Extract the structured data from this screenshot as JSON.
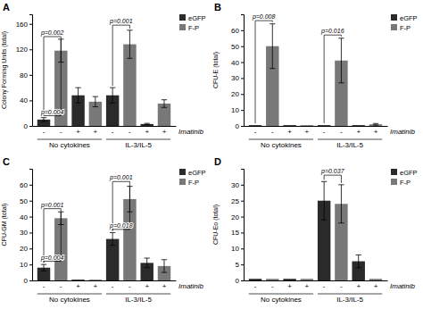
{
  "chart_data": [
    {
      "type": "bar",
      "title": "A",
      "ylabel": "Colony Forming Units (total)",
      "xlabel": "Imatinib",
      "ylim": [
        0,
        175
      ],
      "yticks": [
        0,
        40,
        80,
        120,
        160
      ],
      "categories": [
        "-",
        "-",
        "+",
        "+",
        "-",
        "-",
        "+",
        "+"
      ],
      "groups": [
        "No cytokines",
        "IL-3/IL-5"
      ],
      "legend": "upper right",
      "series": [
        {
          "name": "eGFP",
          "color": "#2a2a2a",
          "values": [
            10,
            null,
            48,
            null,
            48,
            null,
            3,
            null
          ],
          "errors": [
            3,
            null,
            12,
            null,
            12,
            null,
            1,
            null
          ]
        },
        {
          "name": "F-P",
          "color": "#787878",
          "values": [
            null,
            118,
            null,
            38,
            null,
            128,
            null,
            35
          ],
          "errors": [
            null,
            18,
            null,
            8,
            null,
            22,
            null,
            6
          ]
        }
      ],
      "pvalues": [
        {
          "x1": 0,
          "x2": 1,
          "y": 140,
          "text": "p=0.002"
        },
        {
          "x1": 4,
          "x2": 5,
          "y": 158,
          "text": "p=0.001"
        },
        {
          "x1": 0,
          "x2": 1,
          "y": 16,
          "text": "p=0.004"
        }
      ]
    },
    {
      "type": "bar",
      "title": "B",
      "ylabel": "CFU-E (total)",
      "xlabel": "Imatinib",
      "ylim": [
        0,
        70
      ],
      "yticks": [
        0,
        10,
        20,
        30,
        40,
        50,
        60
      ],
      "categories": [
        "-",
        "-",
        "+",
        "+",
        "-",
        "-",
        "+",
        "+"
      ],
      "groups": [
        "No cytokines",
        "IL-3/IL-5"
      ],
      "legend": "upper right",
      "series": [
        {
          "name": "eGFP",
          "color": "#2a2a2a",
          "values": [
            0.5,
            null,
            0.5,
            null,
            0.5,
            null,
            0.5,
            null
          ],
          "errors": [
            0,
            null,
            0,
            null,
            0,
            null,
            0,
            null
          ]
        },
        {
          "name": "F-P",
          "color": "#787878",
          "values": [
            null,
            50,
            null,
            0.5,
            null,
            41,
            null,
            1
          ],
          "errors": [
            null,
            14,
            null,
            0,
            null,
            14,
            null,
            0.5
          ]
        }
      ],
      "pvalues": [
        {
          "x1": 0,
          "x2": 1,
          "y": 66,
          "text": "p=0.008"
        },
        {
          "x1": 4,
          "x2": 5,
          "y": 57,
          "text": "p=0.016"
        }
      ]
    },
    {
      "type": "bar",
      "title": "C",
      "ylabel": "CFU-GM (total)",
      "xlabel": "Imatinib",
      "ylim": [
        0,
        70
      ],
      "yticks": [
        0,
        10,
        20,
        30,
        40,
        50,
        60
      ],
      "categories": [
        "-",
        "-",
        "+",
        "+",
        "-",
        "-",
        "+",
        "+"
      ],
      "groups": [
        "No cytokines",
        "IL-3/IL-5"
      ],
      "legend": "upper right",
      "series": [
        {
          "name": "eGFP",
          "color": "#2a2a2a",
          "values": [
            8,
            null,
            0.5,
            null,
            26,
            null,
            11,
            null
          ],
          "errors": [
            2,
            null,
            0,
            null,
            4,
            null,
            3,
            null
          ]
        },
        {
          "name": "F-P",
          "color": "#787878",
          "values": [
            null,
            39,
            null,
            0.5,
            null,
            51,
            null,
            9
          ],
          "errors": [
            null,
            4,
            null,
            0,
            null,
            8,
            null,
            4
          ]
        }
      ],
      "pvalues": [
        {
          "x1": 0,
          "x2": 1,
          "y": 45,
          "text": "p=0.001"
        },
        {
          "x1": 4,
          "x2": 5,
          "y": 62,
          "text": "p=0.001"
        },
        {
          "x1": 0,
          "x2": 1,
          "y": 12,
          "text": "p=0.004"
        },
        {
          "x1": 4,
          "x2": 5,
          "y": 32,
          "text": "p=0.018"
        }
      ]
    },
    {
      "type": "bar",
      "title": "D",
      "ylabel": "CFU-Eo (total)",
      "xlabel": "Imatinib",
      "ylim": [
        0,
        35
      ],
      "yticks": [
        0,
        5,
        10,
        15,
        20,
        25,
        30
      ],
      "categories": [
        "-",
        "-",
        "+",
        "+",
        "-",
        "-",
        "+",
        "+"
      ],
      "groups": [
        "No cytokines",
        "IL-3/IL-5"
      ],
      "legend": "upper right",
      "series": [
        {
          "name": "eGFP",
          "color": "#2a2a2a",
          "values": [
            0.5,
            null,
            0.5,
            null,
            25,
            null,
            6,
            null
          ],
          "errors": [
            0,
            null,
            0,
            null,
            6,
            null,
            2,
            null
          ]
        },
        {
          "name": "F-P",
          "color": "#787878",
          "values": [
            null,
            0.5,
            null,
            0.5,
            null,
            24,
            null,
            0.5
          ],
          "errors": [
            null,
            0,
            null,
            0,
            null,
            6,
            null,
            0
          ]
        }
      ],
      "pvalues": [
        {
          "x1": 4,
          "x2": 5,
          "y": 33,
          "text": "p=0.037"
        }
      ]
    }
  ]
}
